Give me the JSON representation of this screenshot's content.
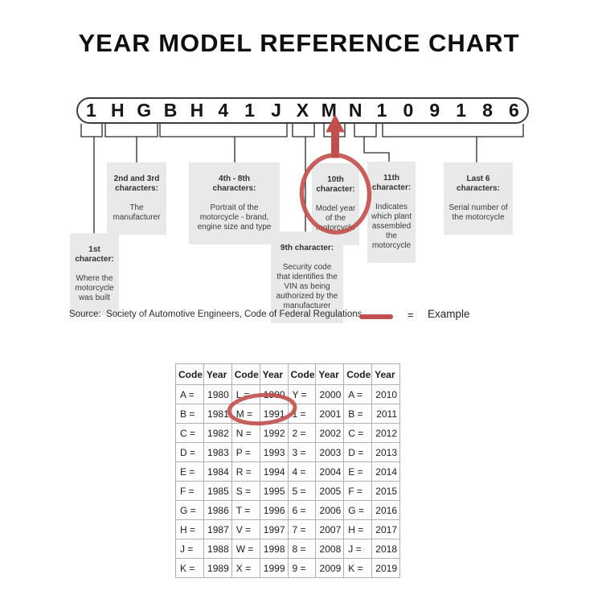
{
  "page": {
    "title": "YEAR MODEL REFERENCE CHART"
  },
  "vin": {
    "characters": [
      "1",
      "H",
      "G",
      "B",
      "H",
      "4",
      "1",
      "J",
      "X",
      "M",
      "N",
      "1",
      "0",
      "9",
      "1",
      "8",
      "6"
    ]
  },
  "labels": [
    {
      "title": "1st\ncharacter:",
      "body": "Where the\nmotorcycle\nwas built"
    },
    {
      "title": "2nd and 3rd\ncharacters:",
      "body": "The\nmanufacturer"
    },
    {
      "title": "4th - 8th\ncharacters:",
      "body": "Portrait of the\nmotorcycle - brand,\nengine size and type"
    },
    {
      "title": "9th character:",
      "body": "Security code\nthat identifies the\nVIN as being\nauthorized by the\nmanufacturer"
    },
    {
      "title": "10th\ncharacter:",
      "body": "Model year\nof the\nmotorcycle"
    },
    {
      "title": "11th\ncharacter:",
      "body": "Indicates\nwhich plant\nassembled\nthe\nmotorcycle"
    },
    {
      "title": "Last 6\ncharacters:",
      "body": "Serial number of\nthe motorcycle"
    }
  ],
  "source_line": {
    "text": "Source:  Society of Automotive Engineers, Code of Federal Regulations",
    "legend_equals": "=",
    "legend_label": "Example"
  },
  "colors": {
    "accent_red": "#c0504d",
    "label_bg": "#e9e9e9",
    "table_border": "#b0b0b0"
  },
  "year_table": {
    "headers": [
      "Code",
      "Year",
      "Code",
      "Year",
      "Code",
      "Year",
      "Code",
      "Year"
    ],
    "rows": [
      [
        "A =",
        "1980",
        "L =",
        "1990",
        "Y =",
        "2000",
        "A =",
        "2010"
      ],
      [
        "B =",
        "1981",
        "M =",
        "1991",
        "1 =",
        "2001",
        "B =",
        "2011"
      ],
      [
        "C =",
        "1982",
        "N =",
        "1992",
        "2 =",
        "2002",
        "C =",
        "2012"
      ],
      [
        "D =",
        "1983",
        "P =",
        "1993",
        "3 =",
        "2003",
        "D =",
        "2013"
      ],
      [
        "E =",
        "1984",
        "R =",
        "1994",
        "4 =",
        "2004",
        "E =",
        "2014"
      ],
      [
        "F =",
        "1985",
        "S =",
        "1995",
        "5 =",
        "2005",
        "F =",
        "2015"
      ],
      [
        "G =",
        "1986",
        "T =",
        "1996",
        "6 =",
        "2006",
        "G =",
        "2016"
      ],
      [
        "H =",
        "1987",
        "V =",
        "1997",
        "7 =",
        "2007",
        "H =",
        "2017"
      ],
      [
        "J =",
        "1988",
        "W =",
        "1998",
        "8 =",
        "2008",
        "J =",
        "2018"
      ],
      [
        "K =",
        "1989",
        "X =",
        "1999",
        "9 =",
        "2009",
        "K =",
        "2019"
      ]
    ]
  }
}
